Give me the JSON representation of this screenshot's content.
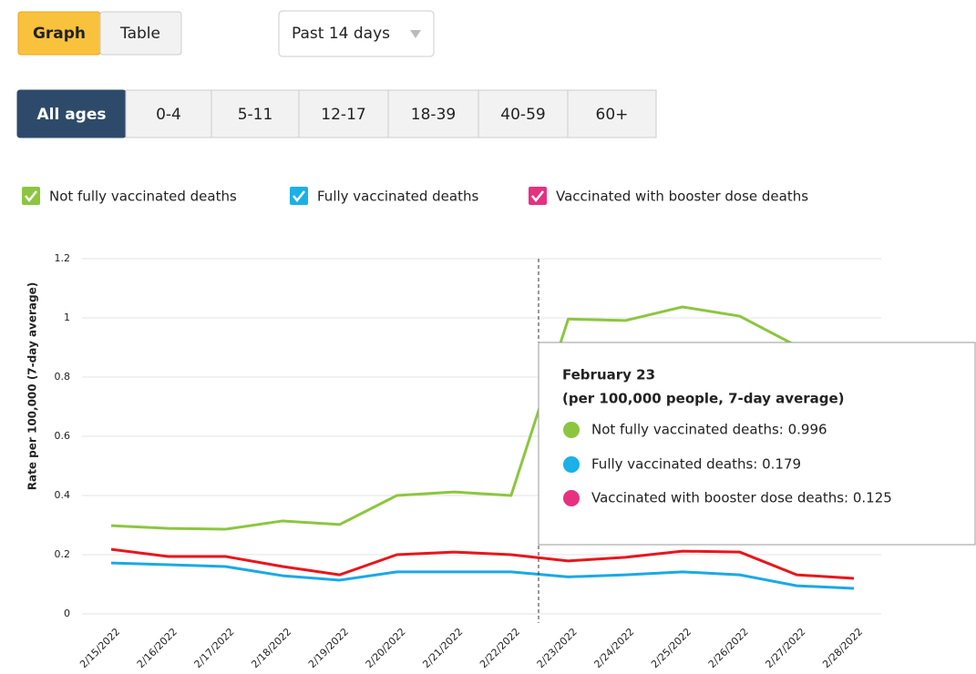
{
  "view_buttons": [
    "Graph",
    "Table"
  ],
  "period_dropdown": "Past 14 days",
  "age_tabs": [
    "All ages",
    "0-4",
    "5-11",
    "12-17",
    "18-39",
    "40-59",
    "60+"
  ],
  "tooltip": {
    "title": "February 23",
    "subtitle": "(per 100,000 people, 7-day average)",
    "items": [
      "Not fully vaccinated deaths: 0.996",
      "Fully vaccinated deaths: 0.179",
      "Vaccinated with booster dose deaths: 0.125"
    ]
  },
  "chart_data": {
    "type": "line",
    "y_label": "Rate per 100,000 (7-day average)",
    "categories": [
      "2/15/2022",
      "2/16/2022",
      "2/17/2022",
      "2/18/2022",
      "2/19/2022",
      "2/20/2022",
      "2/21/2022",
      "2/22/2022",
      "2/23/2022",
      "2/24/2022",
      "2/25/2022",
      "2/26/2022",
      "2/27/2022",
      "2/28/2022"
    ],
    "series": [
      {
        "name": "Not fully vaccinated deaths",
        "color": "#8cc63f",
        "legend_color": "#8cc63f",
        "values": [
          0.298,
          0.289,
          0.286,
          0.314,
          0.302,
          0.4,
          0.412,
          0.4,
          0.996,
          0.991,
          1.037,
          1.006,
          0.905,
          0.85
        ]
      },
      {
        "name": "Fully vaccinated deaths",
        "color": "#e8161b",
        "legend_color": "#1ab0e8",
        "values": [
          0.218,
          0.194,
          0.194,
          0.16,
          0.132,
          0.2,
          0.209,
          0.2,
          0.179,
          0.191,
          0.212,
          0.209,
          0.132,
          0.12
        ]
      },
      {
        "name": "Vaccinated with booster dose deaths",
        "color": "#1aa9e6",
        "legend_color": "#e6317f",
        "values": [
          0.172,
          0.166,
          0.16,
          0.129,
          0.114,
          0.142,
          0.142,
          0.142,
          0.125,
          0.132,
          0.142,
          0.132,
          0.095,
          0.086
        ]
      }
    ],
    "ylim": [
      0,
      1.2
    ],
    "yticks": [
      0,
      0.2,
      0.4,
      0.6,
      0.8,
      1,
      1.2
    ],
    "grid": true
  }
}
